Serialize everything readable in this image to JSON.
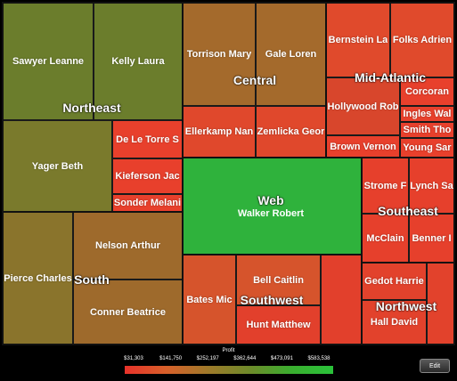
{
  "chart_data": {
    "type": "treemap",
    "legend_title": "Profit",
    "legend_ticks": [
      "$31,303",
      "$141,750",
      "$252,197",
      "$362,644",
      "$473,091",
      "$583,538"
    ],
    "regions": [
      {
        "name": "Northeast",
        "items": [
          "Sawyer Leanne",
          "Kelly Laura",
          "Yager Beth",
          "De Le Torre S",
          "Kieferson Jac",
          "Sonder Melani"
        ]
      },
      {
        "name": "Central",
        "items": [
          "Torrison Mary",
          "Gale Loren",
          "Ellerkamp Nan",
          "Zemlicka Geor"
        ]
      },
      {
        "name": "Mid-Atlantic",
        "items": [
          "Bernstein La",
          "Folks Adrien",
          "Hollywood Rob",
          "Corcoran",
          "Ingles Wal",
          "Smith Tho",
          "Brown Vernon",
          "Young Sar"
        ]
      },
      {
        "name": "Web",
        "items": [
          "Walker Robert"
        ]
      },
      {
        "name": "Southeast",
        "items": [
          "Strome F",
          "Lynch Sa",
          "McClain",
          "Benner I"
        ]
      },
      {
        "name": "South",
        "items": [
          "Nelson Arthur",
          "Pierce Charles",
          "Conner Beatrice"
        ]
      },
      {
        "name": "Southwest",
        "items": [
          "Bates Mic",
          "Bell Caitlin",
          "Hunt Matthew",
          ""
        ]
      },
      {
        "name": "Northwest",
        "items": [
          "Gedot Harrie",
          "",
          "Hall David"
        ]
      }
    ]
  },
  "colors": {
    "sawyer": "#6b7d2c",
    "kelly": "#6b7d2c",
    "yager": "#7a7a2c",
    "red": "#e8402c",
    "orange_red": "#e0502c",
    "central_top": "#a46a2c",
    "central_bottom": "#e0482c",
    "midatl": "#e04a2c",
    "midatl_dark": "#d8462c",
    "web": "#2fb23c",
    "southeast": "#e6402c",
    "south_left": "#8a742c",
    "south_right": "#9e6a2c",
    "southwest": "#d6542c",
    "southwest_red": "#e2402c",
    "northwest": "#e2422c"
  },
  "edit_label": "Edit"
}
